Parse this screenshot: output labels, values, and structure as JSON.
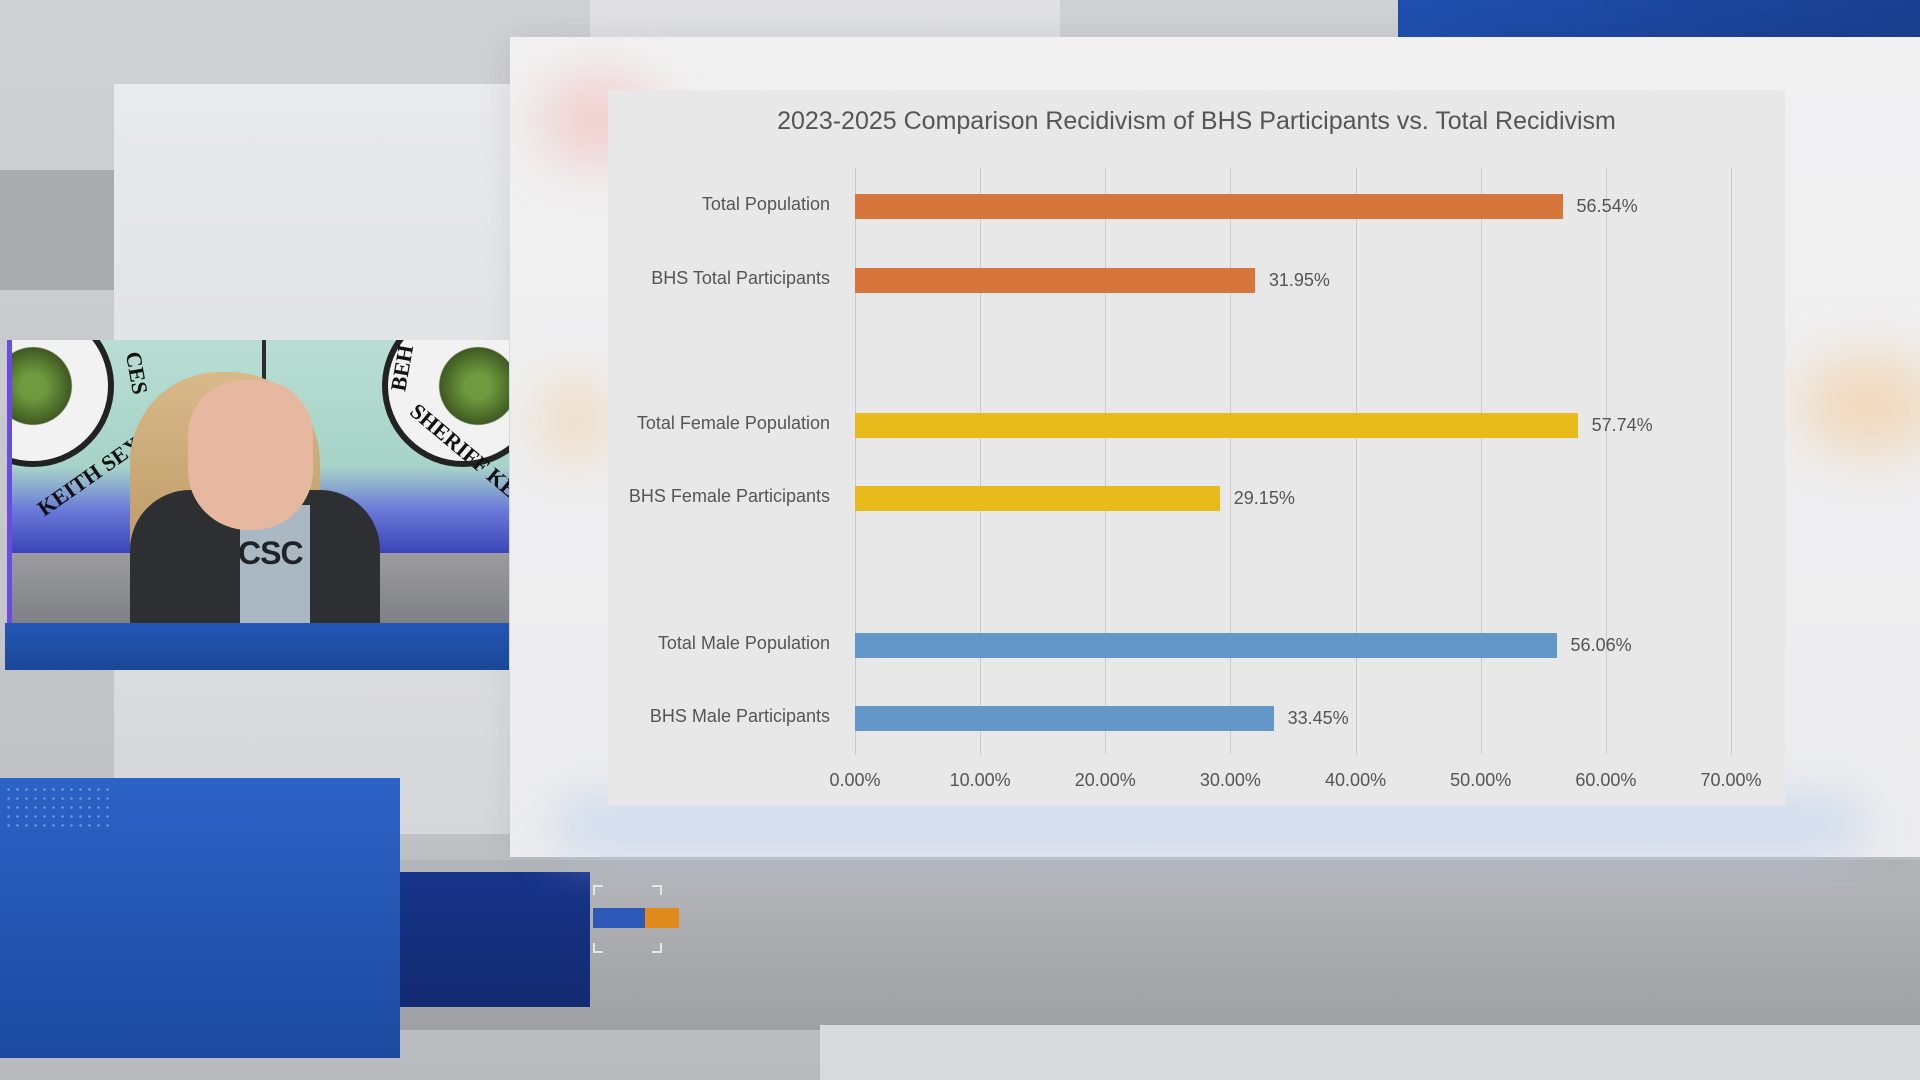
{
  "chart_data": {
    "type": "bar",
    "orientation": "horizontal",
    "title": "2023-2025 Comparison Recidivism of BHS Participants vs. Total Recidivism",
    "categories": [
      "Total Population",
      "BHS Total Participants",
      "Total Female Population",
      "BHS Female Participants",
      "Total Male Population",
      "BHS Male Participants"
    ],
    "values": [
      56.54,
      31.95,
      57.74,
      29.15,
      56.06,
      33.45
    ],
    "value_labels": [
      "56.54%",
      "31.95%",
      "57.74%",
      "29.15%",
      "56.06%",
      "33.45%"
    ],
    "bar_colors": [
      "#d6763a",
      "#d6763a",
      "#e8bb1d",
      "#e8bb1d",
      "#6397c8",
      "#6397c8"
    ],
    "xlim": [
      0,
      70
    ],
    "x_ticks": [
      "0.00%",
      "10.00%",
      "20.00%",
      "30.00%",
      "40.00%",
      "50.00%",
      "60.00%",
      "70.00%"
    ],
    "grid": true,
    "legend": "none"
  },
  "inset": {
    "seal_left_text": "KEITH SEXTON",
    "seal_left_text_2": "CES",
    "seal_right_text": "SHERIFF KEIT",
    "seal_right_text_2": "BEH",
    "shirt_text": "CSC"
  },
  "colors": {
    "accent_blue": "#2d58b8",
    "accent_orange": "#e08a1c"
  }
}
